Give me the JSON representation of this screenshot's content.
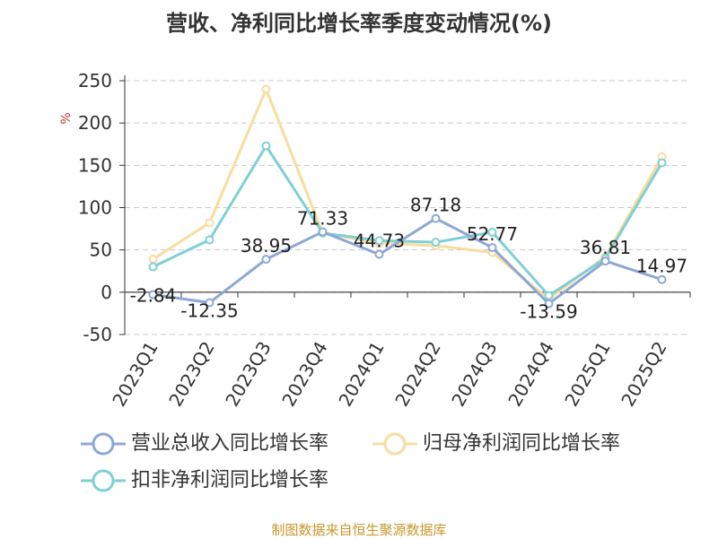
{
  "title": "营收、净利同比增长率季度变动情况(%)",
  "source": "制图数据来自恒生聚源数据库",
  "chart_data": {
    "type": "line",
    "title": "营收、净利同比增长率季度变动情况(%)",
    "ylabel": "%",
    "ylim": [
      -50,
      250
    ],
    "yticks": [
      "250",
      "200",
      "150",
      "100",
      "50",
      "0",
      "-50"
    ],
    "grid": true,
    "legend_position": "bottom",
    "categories": [
      "2023Q1",
      "2023Q2",
      "2023Q3",
      "2023Q4",
      "2024Q1",
      "2024Q2",
      "2024Q3",
      "2024Q4",
      "2025Q1",
      "2025Q2"
    ],
    "series": [
      {
        "name": "营业总收入同比增长率",
        "color": "#8da7d6",
        "values": [
          -2.84,
          -12.35,
          38.95,
          71.33,
          44.73,
          87.18,
          52.77,
          -13.59,
          36.81,
          14.97
        ],
        "labels": [
          "-2.84",
          "-12.35",
          "38.95",
          "71.33",
          "44.73",
          "87.18",
          "52.77",
          "-13.59",
          "36.81",
          "14.97"
        ]
      },
      {
        "name": "归母净利润同比增长率",
        "color": "#f9dc9e",
        "values": [
          39,
          82,
          240,
          70,
          58,
          55,
          47,
          -8,
          42,
          160
        ]
      },
      {
        "name": "扣非净利润同比增长率",
        "color": "#7fd0d4",
        "values": [
          30,
          62,
          173,
          70,
          61,
          59,
          71,
          -4,
          40,
          153
        ]
      }
    ]
  }
}
